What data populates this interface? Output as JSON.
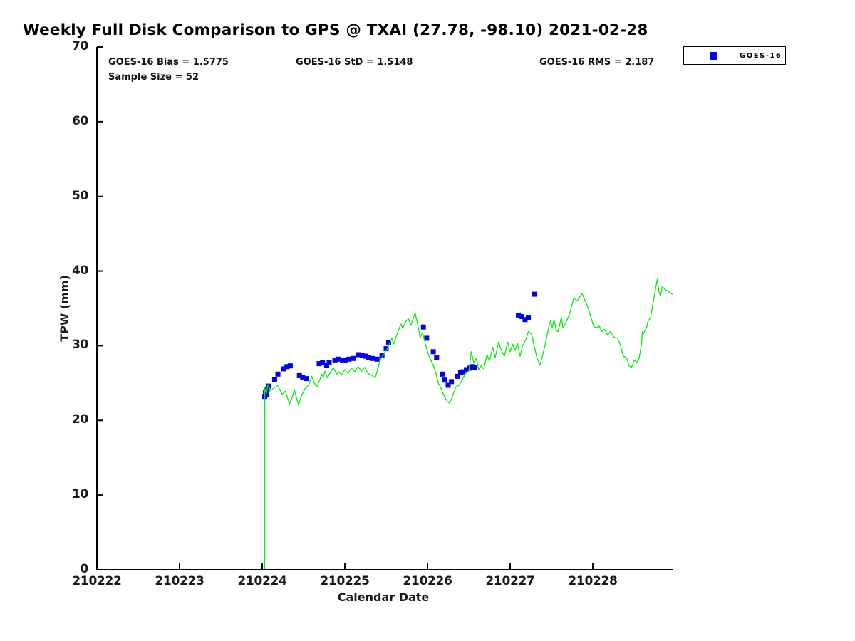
{
  "chart_data": {
    "type": "line+scatter",
    "title": "Weekly Full Disk Comparison to GPS @ TXAI (27.78, -98.10) 2021-02-28",
    "xlabel": "Calendar Date",
    "ylabel": "TPW (mm)",
    "xlim": [
      210222,
      210228.97
    ],
    "ylim": [
      0,
      70
    ],
    "xticks": [
      "210222",
      "210223",
      "210224",
      "210225",
      "210226",
      "210227",
      "210228"
    ],
    "yticks": [
      "0",
      "10",
      "20",
      "30",
      "40",
      "50",
      "60",
      "70"
    ],
    "grid": false,
    "annotations": [
      "GOES-16 Bias = 1.5775",
      "GOES-16 StD = 1.5148",
      "GOES-16 RMS = 2.187",
      "Sample Size = 52"
    ],
    "legend": {
      "position": "top-right",
      "entries": [
        "GOES-16"
      ],
      "marker_color": "#0000ee"
    },
    "colors": {
      "gps_line": "#00f000",
      "goes16_marker": "#0000ee",
      "axis": "#000000",
      "tick_label": "#1a1a1a"
    },
    "series": [
      {
        "name": "GPS",
        "type": "line",
        "color": "#00f000",
        "points": [
          [
            210224.03,
            0
          ],
          [
            210224.03,
            24.3
          ],
          [
            210224.05,
            23.6
          ],
          [
            210224.07,
            24.8
          ],
          [
            210224.1,
            24.0
          ],
          [
            210224.14,
            24.3
          ],
          [
            210224.19,
            24.7
          ],
          [
            210224.24,
            23.5
          ],
          [
            210224.28,
            23.9
          ],
          [
            210224.33,
            22.2
          ],
          [
            210224.36,
            23.0
          ],
          [
            210224.39,
            24.1
          ],
          [
            210224.42,
            22.8
          ],
          [
            210224.44,
            22.1
          ],
          [
            210224.48,
            23.4
          ],
          [
            210224.52,
            24.3
          ],
          [
            210224.56,
            24.7
          ],
          [
            210224.6,
            25.9
          ],
          [
            210224.63,
            25.0
          ],
          [
            210224.66,
            24.5
          ],
          [
            210224.7,
            25.5
          ],
          [
            210224.72,
            26.2
          ],
          [
            210224.74,
            25.8
          ],
          [
            210224.76,
            26.6
          ],
          [
            210224.79,
            25.7
          ],
          [
            210224.82,
            26.3
          ],
          [
            210224.86,
            27.1
          ],
          [
            210224.9,
            26.2
          ],
          [
            210224.93,
            26.5
          ],
          [
            210224.96,
            26.1
          ],
          [
            210225.0,
            26.8
          ],
          [
            210225.04,
            26.3
          ],
          [
            210225.08,
            27.0
          ],
          [
            210225.12,
            26.5
          ],
          [
            210225.16,
            27.2
          ],
          [
            210225.2,
            26.6
          ],
          [
            210225.24,
            27.1
          ],
          [
            210225.28,
            26.3
          ],
          [
            210225.33,
            26.0
          ],
          [
            210225.37,
            25.7
          ],
          [
            210225.4,
            27.0
          ],
          [
            210225.43,
            28.1
          ],
          [
            210225.47,
            28.9
          ],
          [
            210225.51,
            29.5
          ],
          [
            210225.54,
            30.3
          ],
          [
            210225.57,
            31.0
          ],
          [
            210225.59,
            30.2
          ],
          [
            210225.63,
            31.5
          ],
          [
            210225.66,
            32.4
          ],
          [
            210225.68,
            32.9
          ],
          [
            210225.7,
            32.3
          ],
          [
            210225.74,
            33.3
          ],
          [
            210225.77,
            33.6
          ],
          [
            210225.8,
            32.7
          ],
          [
            210225.85,
            34.4
          ],
          [
            210225.89,
            32.4
          ],
          [
            210225.91,
            31.1
          ],
          [
            210225.94,
            31.7
          ],
          [
            210226.0,
            29.2
          ],
          [
            210226.03,
            28.3
          ],
          [
            210226.07,
            27.4
          ],
          [
            210226.1,
            26.4
          ],
          [
            210226.13,
            25.0
          ],
          [
            210226.16,
            24.4
          ],
          [
            210226.2,
            23.3
          ],
          [
            210226.24,
            22.5
          ],
          [
            210226.27,
            22.3
          ],
          [
            210226.31,
            23.5
          ],
          [
            210226.34,
            24.4
          ],
          [
            210226.38,
            24.7
          ],
          [
            210226.42,
            25.4
          ],
          [
            210226.46,
            26.3
          ],
          [
            210226.5,
            26.6
          ],
          [
            210226.53,
            29.2
          ],
          [
            210226.56,
            27.7
          ],
          [
            210226.59,
            28.3
          ],
          [
            210226.62,
            26.8
          ],
          [
            210226.65,
            27.3
          ],
          [
            210226.68,
            26.9
          ],
          [
            210226.72,
            28.8
          ],
          [
            210226.75,
            28.0
          ],
          [
            210226.79,
            29.8
          ],
          [
            210226.82,
            28.4
          ],
          [
            210226.86,
            30.5
          ],
          [
            210226.89,
            29.5
          ],
          [
            210226.93,
            28.6
          ],
          [
            210226.97,
            30.5
          ],
          [
            210227.0,
            29.2
          ],
          [
            210227.03,
            30.2
          ],
          [
            210227.06,
            29.4
          ],
          [
            210227.09,
            30.3
          ],
          [
            210227.12,
            28.6
          ],
          [
            210227.15,
            30.0
          ],
          [
            210227.19,
            30.8
          ],
          [
            210227.22,
            31.9
          ],
          [
            210227.26,
            31.5
          ],
          [
            210227.3,
            29.5
          ],
          [
            210227.33,
            28.2
          ],
          [
            210227.36,
            27.4
          ],
          [
            210227.4,
            29.0
          ],
          [
            210227.44,
            31.0
          ],
          [
            210227.47,
            32.6
          ],
          [
            210227.49,
            33.3
          ],
          [
            210227.51,
            32.4
          ],
          [
            210227.53,
            33.5
          ],
          [
            210227.56,
            32.0
          ],
          [
            210227.58,
            31.9
          ],
          [
            210227.62,
            33.8
          ],
          [
            210227.64,
            32.4
          ],
          [
            210227.68,
            33.2
          ],
          [
            210227.72,
            34.3
          ],
          [
            210227.77,
            36.4
          ],
          [
            210227.81,
            36.0
          ],
          [
            210227.87,
            37.0
          ],
          [
            210227.94,
            35.2
          ],
          [
            210227.97,
            34.1
          ],
          [
            210228.01,
            32.6
          ],
          [
            210228.04,
            32.4
          ],
          [
            210228.08,
            32.6
          ],
          [
            210228.11,
            31.9
          ],
          [
            210228.14,
            32.2
          ],
          [
            210228.18,
            31.4
          ],
          [
            210228.21,
            31.9
          ],
          [
            210228.26,
            31.1
          ],
          [
            210228.3,
            31.0
          ],
          [
            210228.33,
            30.2
          ],
          [
            210228.37,
            28.6
          ],
          [
            210228.41,
            28.4
          ],
          [
            210228.44,
            27.3
          ],
          [
            210228.47,
            27.1
          ],
          [
            210228.5,
            28.1
          ],
          [
            210228.53,
            27.8
          ],
          [
            210228.56,
            28.3
          ],
          [
            210228.59,
            30.2
          ],
          [
            210228.6,
            31.9
          ],
          [
            210228.61,
            31.6
          ],
          [
            210228.65,
            32.4
          ],
          [
            210228.67,
            33.3
          ],
          [
            210228.7,
            33.8
          ],
          [
            210228.74,
            36.4
          ],
          [
            210228.78,
            38.9
          ],
          [
            210228.8,
            37.2
          ],
          [
            210228.82,
            36.7
          ],
          [
            210228.84,
            37.9
          ],
          [
            210228.88,
            37.5
          ],
          [
            210228.91,
            37.3
          ],
          [
            210228.96,
            36.9
          ]
        ]
      },
      {
        "name": "GOES-16",
        "type": "scatter",
        "marker": "square",
        "color": "#0000ee",
        "points": [
          [
            210224.03,
            23.2
          ],
          [
            210224.04,
            23.7
          ],
          [
            210224.05,
            23.4
          ],
          [
            210224.06,
            24.1
          ],
          [
            210224.08,
            24.6
          ],
          [
            210224.15,
            25.5
          ],
          [
            210224.19,
            26.2
          ],
          [
            210224.26,
            26.9
          ],
          [
            210224.3,
            27.2
          ],
          [
            210224.34,
            27.3
          ],
          [
            210224.45,
            26.0
          ],
          [
            210224.49,
            25.8
          ],
          [
            210224.53,
            25.6
          ],
          [
            210224.69,
            27.6
          ],
          [
            210224.73,
            27.8
          ],
          [
            210224.78,
            27.4
          ],
          [
            210224.81,
            27.7
          ],
          [
            210224.88,
            28.1
          ],
          [
            210224.92,
            28.2
          ],
          [
            210224.97,
            28.0
          ],
          [
            210225.01,
            28.1
          ],
          [
            210225.05,
            28.2
          ],
          [
            210225.1,
            28.3
          ],
          [
            210225.16,
            28.8
          ],
          [
            210225.21,
            28.7
          ],
          [
            210225.25,
            28.6
          ],
          [
            210225.29,
            28.4
          ],
          [
            210225.34,
            28.3
          ],
          [
            210225.39,
            28.2
          ],
          [
            210225.45,
            28.7
          ],
          [
            210225.5,
            29.6
          ],
          [
            210225.53,
            30.4
          ],
          [
            210225.95,
            32.5
          ],
          [
            210225.99,
            31.0
          ],
          [
            210226.07,
            29.2
          ],
          [
            210226.11,
            28.4
          ],
          [
            210226.18,
            26.2
          ],
          [
            210226.21,
            25.4
          ],
          [
            210226.25,
            24.7
          ],
          [
            210226.29,
            25.2
          ],
          [
            210226.36,
            25.9
          ],
          [
            210226.4,
            26.4
          ],
          [
            210226.43,
            26.5
          ],
          [
            210226.47,
            26.8
          ],
          [
            210226.51,
            27.0
          ],
          [
            210226.54,
            27.2
          ],
          [
            210226.57,
            27.1
          ],
          [
            210227.1,
            34.1
          ],
          [
            210227.14,
            33.9
          ],
          [
            210227.18,
            33.5
          ],
          [
            210227.22,
            33.8
          ],
          [
            210227.29,
            36.9
          ]
        ]
      }
    ]
  }
}
